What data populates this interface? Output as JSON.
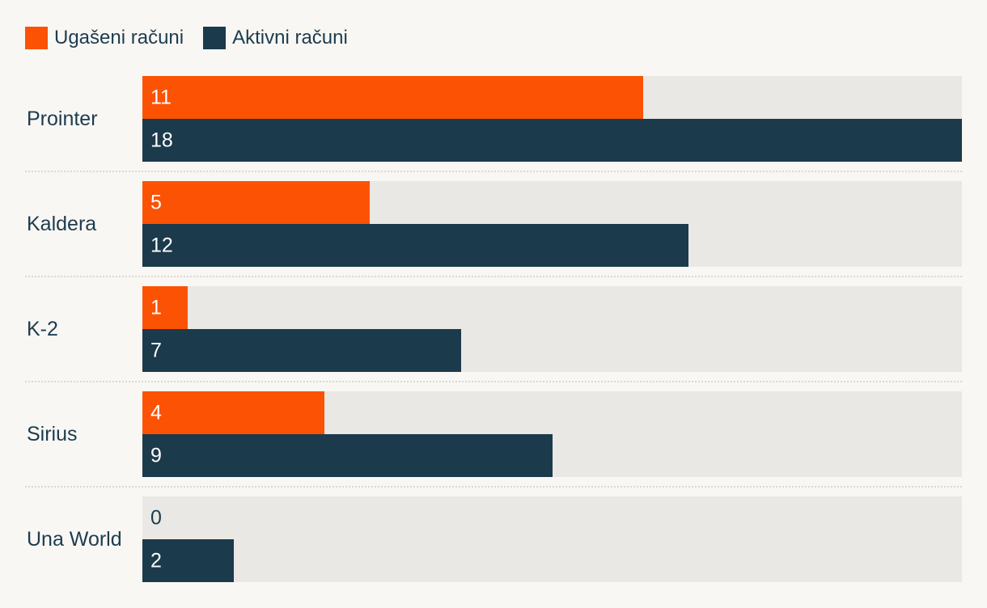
{
  "legend": {
    "items": [
      {
        "label": "Ugašeni računi",
        "color": "#fc5203"
      },
      {
        "label": "Aktivni računi",
        "color": "#1b3a4b"
      }
    ]
  },
  "chart_data": {
    "type": "bar",
    "orientation": "horizontal",
    "title": "",
    "categories": [
      "Prointer",
      "Kaldera",
      "K-2",
      "Sirius",
      "Una World"
    ],
    "series": [
      {
        "name": "Ugašeni računi",
        "color": "#fc5203",
        "values": [
          11,
          5,
          1,
          4,
          0
        ]
      },
      {
        "name": "Aktivni računi",
        "color": "#1b3a4b",
        "values": [
          18,
          12,
          7,
          9,
          2
        ]
      }
    ],
    "xlim": [
      0,
      18
    ],
    "value_labels": "inside-left",
    "legend_position": "top-left",
    "grid": "off",
    "colors": {
      "background": "#f8f7f4",
      "track": "#e9e8e5",
      "separator": "#d9d8d3",
      "label_text": "#1d3c4e",
      "value_text_on_bar": "#ffffff",
      "value_text_zero": "#1d3c4e"
    }
  }
}
